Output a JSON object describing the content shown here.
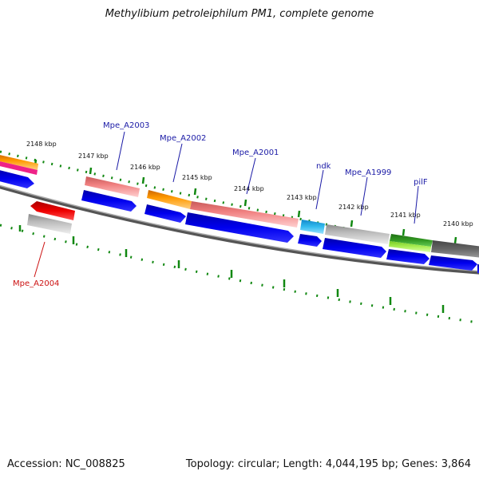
{
  "title": "Methylibium petroleiphilum PM1, complete genome",
  "footer": {
    "accession": "Accession: NC_008825",
    "summary": "Topology: circular; Length: 4,044,195 bp; Genes: 3,864"
  },
  "kbp_labels": [
    "2148 kbp",
    "2147 kbp",
    "2146 kbp",
    "2145 kbp",
    "2144 kbp",
    "2143 kbp",
    "2142 kbp",
    "2141 kbp",
    "2140 kbp"
  ],
  "gene_labels": {
    "a2004": "Mpe_A2004",
    "a2003": "Mpe_A2003",
    "a2002": "Mpe_A2002",
    "a2001": "Mpe_A2001",
    "ndk": "ndk",
    "a1999": "Mpe_A1999",
    "pilf": "pilF"
  },
  "colors": {
    "cds_blue": "#0000ee",
    "salmon": "#f08080",
    "orange": "#ff9900",
    "red": "#ee0000",
    "gray": "#b8b8b8",
    "cyan": "#33bbee",
    "green": "#339922",
    "lime": "#99ee44",
    "darkgray": "#666666",
    "magenta": "#ee2288",
    "tick_green": "#118811",
    "label_blue": "#1a1aa6",
    "label_red": "#cc1111"
  }
}
